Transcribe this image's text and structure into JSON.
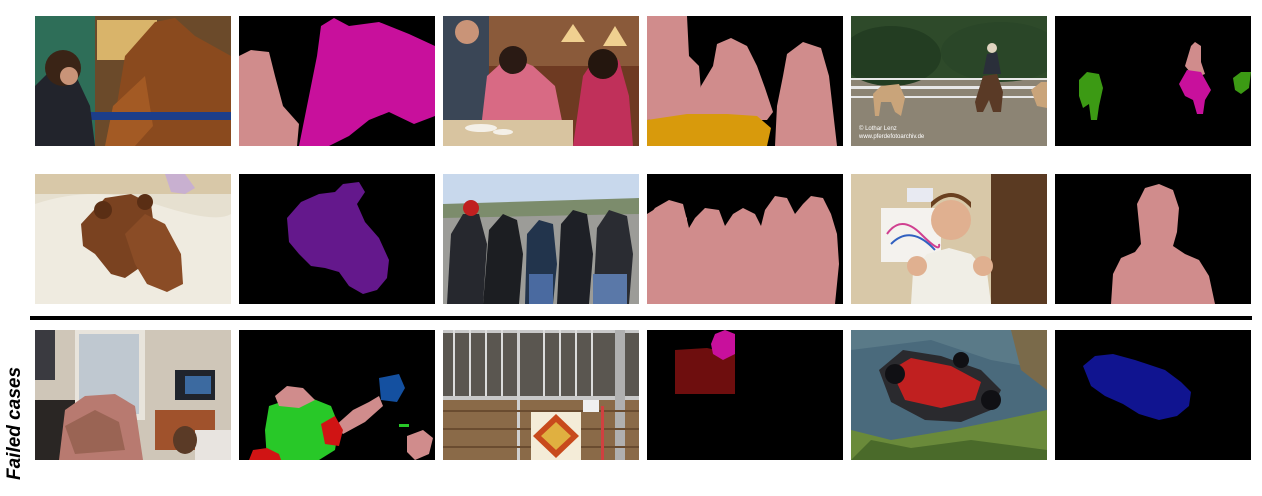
{
  "side_label": "Failed cases",
  "watermark": {
    "line1": "© Lothar Lenz",
    "line2": "www.pferdefotoarchiv.de"
  },
  "colors": {
    "person": "#d08c8c",
    "horse": "#c8109c",
    "dog": "#64188c",
    "sheep": "#3c9a14",
    "table": "#d89a0c",
    "chair": "#8c1414",
    "car": "#101490",
    "plant": "#28c828",
    "sofa": "#d01414",
    "tv": "#1450a0",
    "background": "#000000"
  },
  "rows": [
    {
      "name": "success-row-1",
      "pairs": [
        "horse-and-woman",
        "people-at-table",
        "rider-in-arena"
      ]
    },
    {
      "name": "success-row-2",
      "pairs": [
        "dogs-on-bed",
        "group-of-men",
        "boy-thumbs-up"
      ]
    },
    {
      "name": "failed-row",
      "pairs": [
        "living-room",
        "stable-door",
        "overturned-car"
      ]
    }
  ]
}
